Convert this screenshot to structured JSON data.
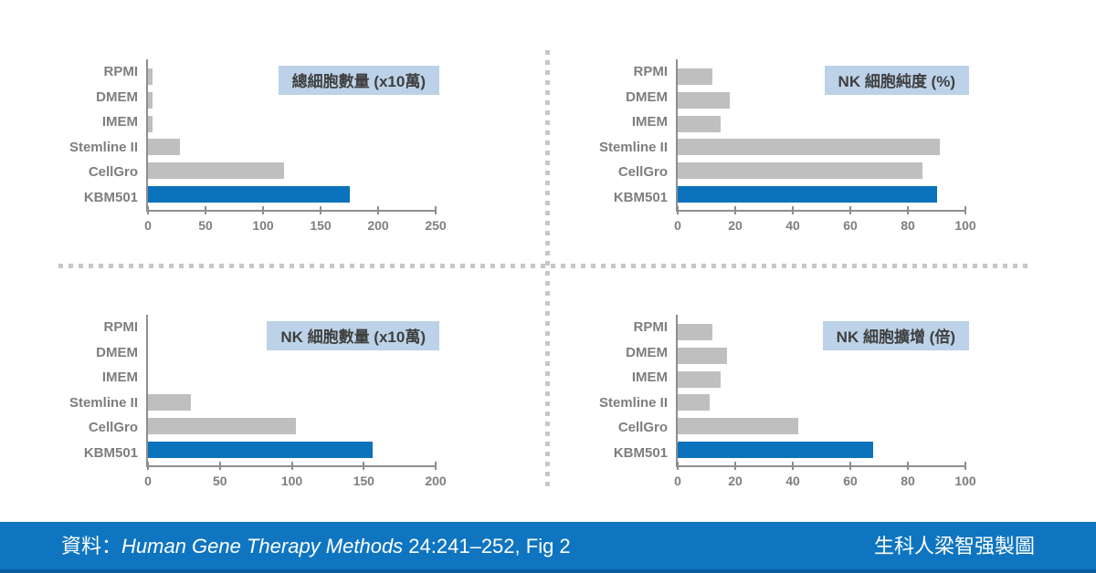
{
  "colors": {
    "bar_gray": "#bfbfbf",
    "bar_blue": "#0b72bc",
    "axis": "#8e8e8e",
    "label_text": "#7e7e7e",
    "title_bg": "#bcd2e8",
    "title_text": "#3f3f3f",
    "divider": "#c7c7c7",
    "footer_bg": "#0f75c0",
    "footer_accent": "#0a5fa0"
  },
  "chart_data": [
    {
      "type": "bar",
      "orientation": "horizontal",
      "title": "總細胞數量 (x10萬)",
      "categories": [
        "RPMI",
        "DMEM",
        "IMEM",
        "Stemline II",
        "CellGro",
        "KBM501"
      ],
      "values": [
        4,
        4,
        4,
        28,
        118,
        175
      ],
      "xlim": [
        0,
        250
      ],
      "xticks": [
        0,
        50,
        100,
        150,
        200,
        250
      ],
      "highlight_category": "KBM501",
      "grid": false,
      "legend": "none"
    },
    {
      "type": "bar",
      "orientation": "horizontal",
      "title": "NK 細胞純度 (%)",
      "categories": [
        "RPMI",
        "DMEM",
        "IMEM",
        "Stemline II",
        "CellGro",
        "KBM501"
      ],
      "values": [
        12,
        18,
        15,
        91,
        85,
        90
      ],
      "xlim": [
        0,
        100
      ],
      "xticks": [
        0,
        20,
        40,
        60,
        80,
        100
      ],
      "highlight_category": "KBM501",
      "grid": false,
      "legend": "none"
    },
    {
      "type": "bar",
      "orientation": "horizontal",
      "title": "NK 細胞數量 (x10萬)",
      "categories": [
        "RPMI",
        "DMEM",
        "IMEM",
        "Stemline II",
        "CellGro",
        "KBM501"
      ],
      "values": [
        0,
        0,
        0,
        30,
        103,
        156
      ],
      "xlim": [
        0,
        200
      ],
      "xticks": [
        0,
        50,
        100,
        150,
        200
      ],
      "highlight_category": "KBM501",
      "grid": false,
      "legend": "none"
    },
    {
      "type": "bar",
      "orientation": "horizontal",
      "title": "NK 細胞擴增 (倍)",
      "categories": [
        "RPMI",
        "DMEM",
        "IMEM",
        "Stemline II",
        "CellGro",
        "KBM501"
      ],
      "values": [
        12,
        17,
        15,
        11,
        42,
        68
      ],
      "xlim": [
        0,
        100
      ],
      "xticks": [
        0,
        20,
        40,
        60,
        80,
        100
      ],
      "highlight_category": "KBM501",
      "grid": false,
      "legend": "none"
    }
  ],
  "footer": {
    "source_prefix": "資料：",
    "source_journal": "Human Gene Therapy Methods",
    "source_suffix": " 24:241–252, Fig 2",
    "credit": "生科人梁智强製圖"
  }
}
